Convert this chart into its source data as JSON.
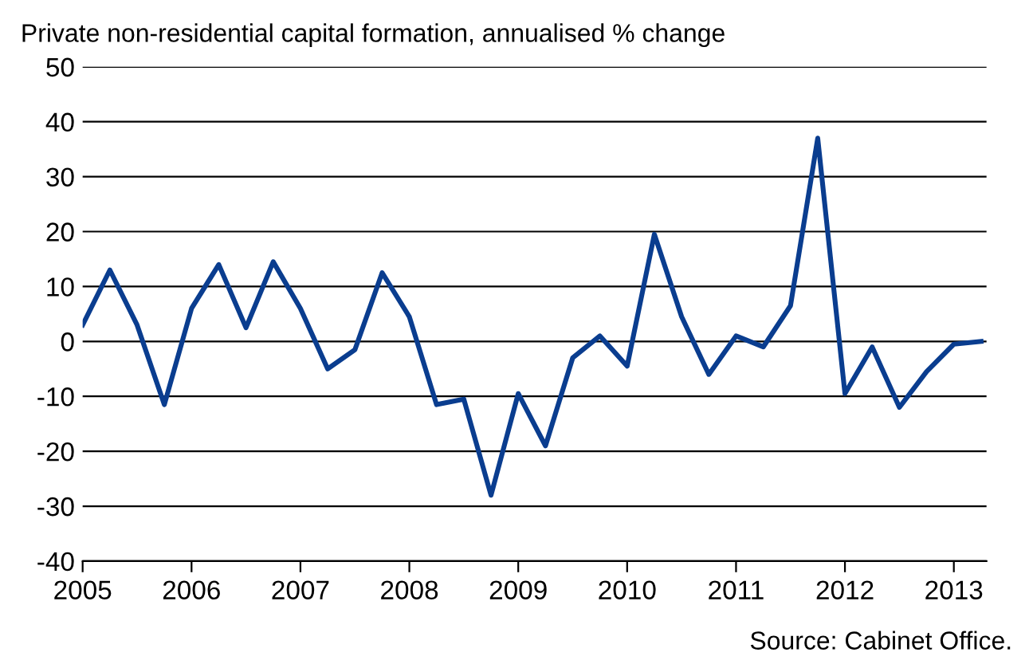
{
  "chart_data": {
    "type": "line",
    "title": "Private non-residential capital formation, annualised % change",
    "x": [
      2005.0,
      2005.25,
      2005.5,
      2005.75,
      2006.0,
      2006.25,
      2006.5,
      2006.75,
      2007.0,
      2007.25,
      2007.5,
      2007.75,
      2008.0,
      2008.25,
      2008.5,
      2008.75,
      2009.0,
      2009.25,
      2009.5,
      2009.75,
      2010.0,
      2010.25,
      2010.5,
      2010.75,
      2011.0,
      2011.25,
      2011.5,
      2011.75,
      2012.0,
      2012.25,
      2012.5,
      2012.75,
      2013.0,
      2013.25
    ],
    "series": [
      {
        "color": "#0a3d8f",
        "values": [
          3,
          13,
          3,
          -11.5,
          6,
          14,
          2.5,
          14.5,
          6,
          -5,
          -1.5,
          12.5,
          4.5,
          -11.5,
          -10.5,
          -28,
          -9.5,
          -19,
          -3,
          1,
          -4.5,
          19.5,
          4.5,
          -6,
          1,
          -1,
          6.5,
          37,
          -9.5,
          -1,
          -12,
          -5.5,
          -0.5,
          0
        ]
      }
    ],
    "xlim": [
      2005,
      2013.3
    ],
    "xticks": [
      2005,
      2006,
      2007,
      2008,
      2009,
      2010,
      2011,
      2012,
      2013
    ],
    "ylim": [
      -40,
      50
    ],
    "yticks": [
      -40,
      -30,
      -20,
      -10,
      0,
      10,
      20,
      30,
      40,
      50
    ],
    "grid": "y",
    "marker": "none",
    "line_style": "solid",
    "annotations": [
      "Source: Cabinet Office."
    ]
  }
}
